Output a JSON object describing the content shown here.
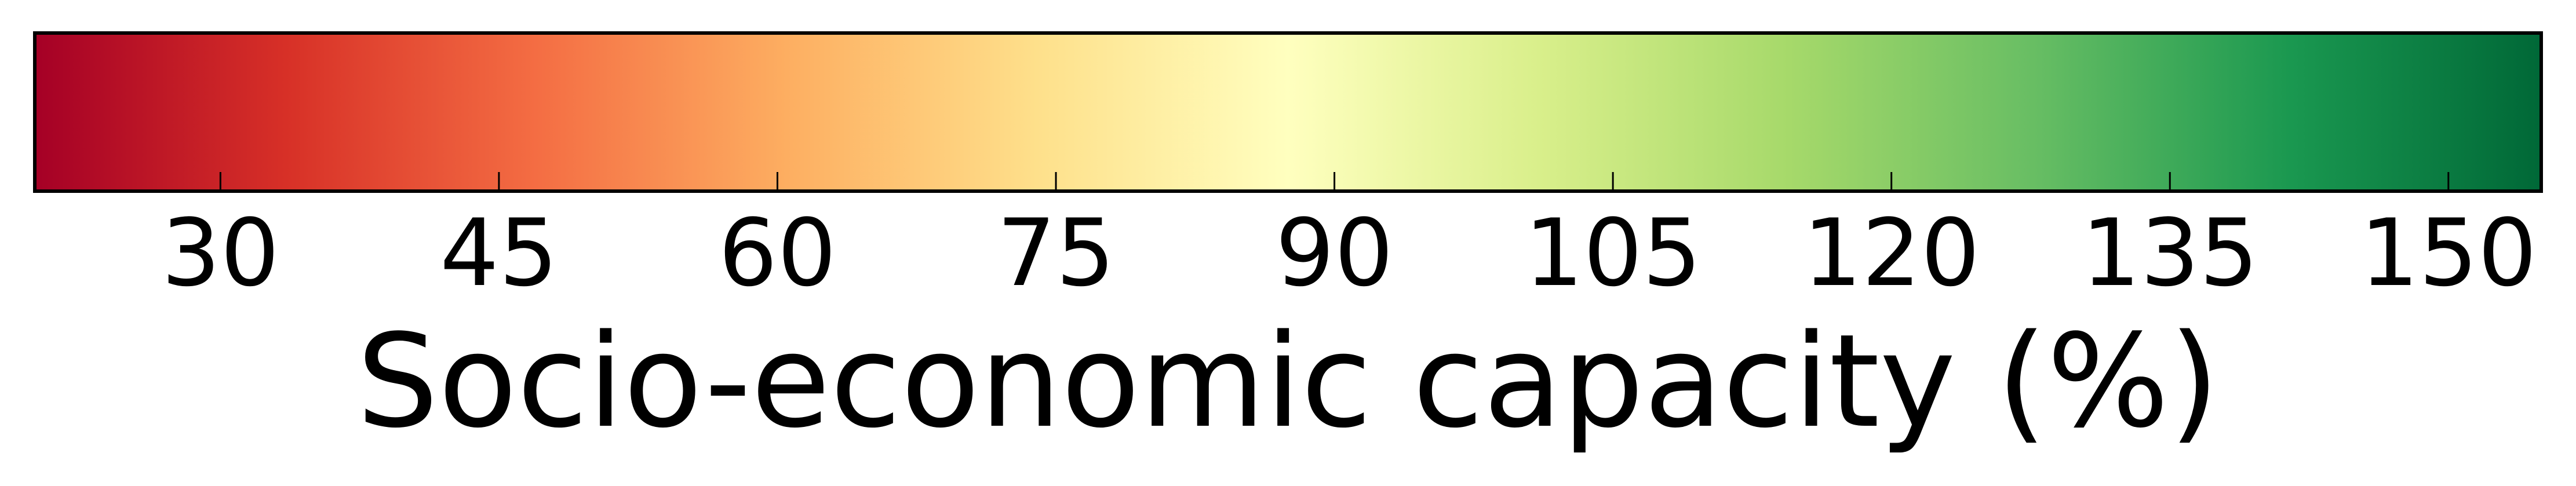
{
  "chart_data": {
    "type": "heatmap",
    "title": "",
    "xlabel": "Socio-economic capacity (%)",
    "ylabel": "",
    "xlim": [
      20,
      155
    ],
    "ticks": [
      30,
      45,
      60,
      75,
      90,
      105,
      120,
      135,
      150
    ],
    "tick_labels": [
      "30",
      "45",
      "60",
      "75",
      "90",
      "105",
      "120",
      "135",
      "150"
    ],
    "colormap": "RdYlGn",
    "colormap_stops": [
      {
        "value": 0.0,
        "color": "#a50026"
      },
      {
        "value": 0.1,
        "color": "#d73027"
      },
      {
        "value": 0.2,
        "color": "#f46d43"
      },
      {
        "value": 0.3,
        "color": "#fdae61"
      },
      {
        "value": 0.4,
        "color": "#fee08b"
      },
      {
        "value": 0.5,
        "color": "#ffffbf"
      },
      {
        "value": 0.6,
        "color": "#d9ef8b"
      },
      {
        "value": 0.7,
        "color": "#a6d96a"
      },
      {
        "value": 0.8,
        "color": "#66bd63"
      },
      {
        "value": 0.9,
        "color": "#1a9850"
      },
      {
        "value": 1.0,
        "color": "#006837"
      }
    ],
    "grid": false,
    "legend": "none"
  }
}
